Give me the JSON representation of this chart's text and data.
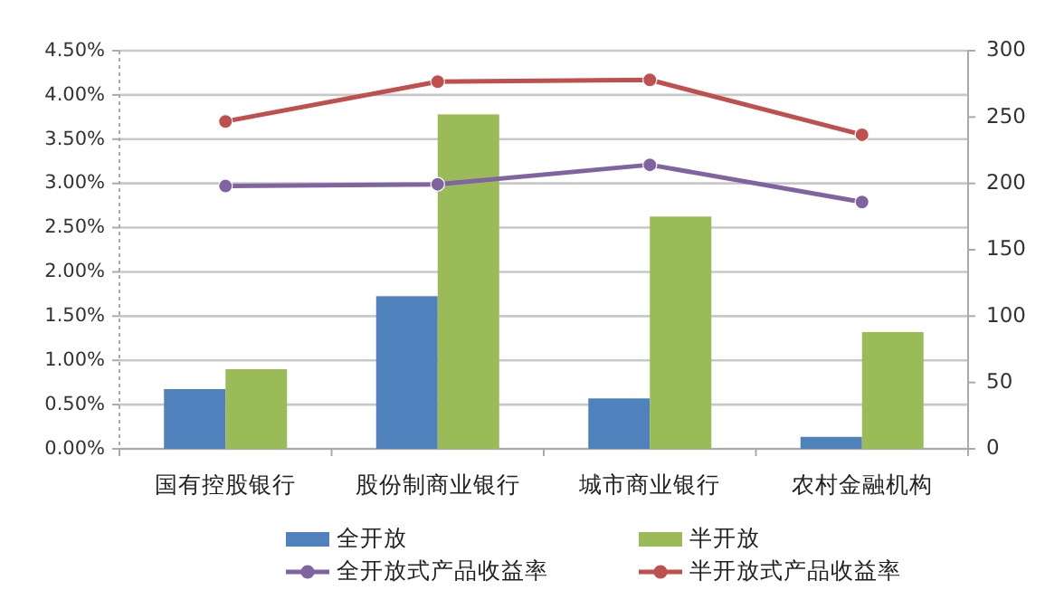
{
  "chart_data": {
    "type": "bar",
    "categories": [
      "国有控股银行",
      "股份制商业银行",
      "城市商业银行",
      "农村金融机构"
    ],
    "series": [
      {
        "name": "全开放",
        "axis": "y2",
        "color": "#4f81bd",
        "values": [
          45,
          115,
          38,
          9
        ]
      },
      {
        "name": "半开放",
        "axis": "y2",
        "color": "#9bbb59",
        "values": [
          60,
          252,
          175,
          88
        ]
      },
      {
        "name": "全开放式产品收益率",
        "type": "line",
        "axis": "y",
        "color": "#8064a2",
        "marker": "circle",
        "values": [
          2.97,
          2.99,
          3.21,
          2.79
        ]
      },
      {
        "name": "半开放式产品收益率",
        "type": "line",
        "axis": "y",
        "color": "#c0504d",
        "marker": "circle",
        "values": [
          3.7,
          4.15,
          4.17,
          3.55
        ]
      }
    ],
    "ylim": [
      0,
      4.5
    ],
    "yticks": [
      {
        "value": 0,
        "label": "0.00%"
      },
      {
        "value": 0.5,
        "label": "0.50%"
      },
      {
        "value": 1,
        "label": "1.00%"
      },
      {
        "value": 1.5,
        "label": "1.50%"
      },
      {
        "value": 2,
        "label": "2.00%"
      },
      {
        "value": 2.5,
        "label": "2.50%"
      },
      {
        "value": 3,
        "label": "3.00%"
      },
      {
        "value": 3.5,
        "label": "3.50%"
      },
      {
        "value": 4,
        "label": "4.00%"
      },
      {
        "value": 4.5,
        "label": "4.50%"
      }
    ],
    "y2lim": [
      0,
      300
    ],
    "y2ticks": [
      0,
      50,
      100,
      150,
      200,
      250,
      300
    ],
    "grid": "y",
    "legend": "bottom"
  }
}
